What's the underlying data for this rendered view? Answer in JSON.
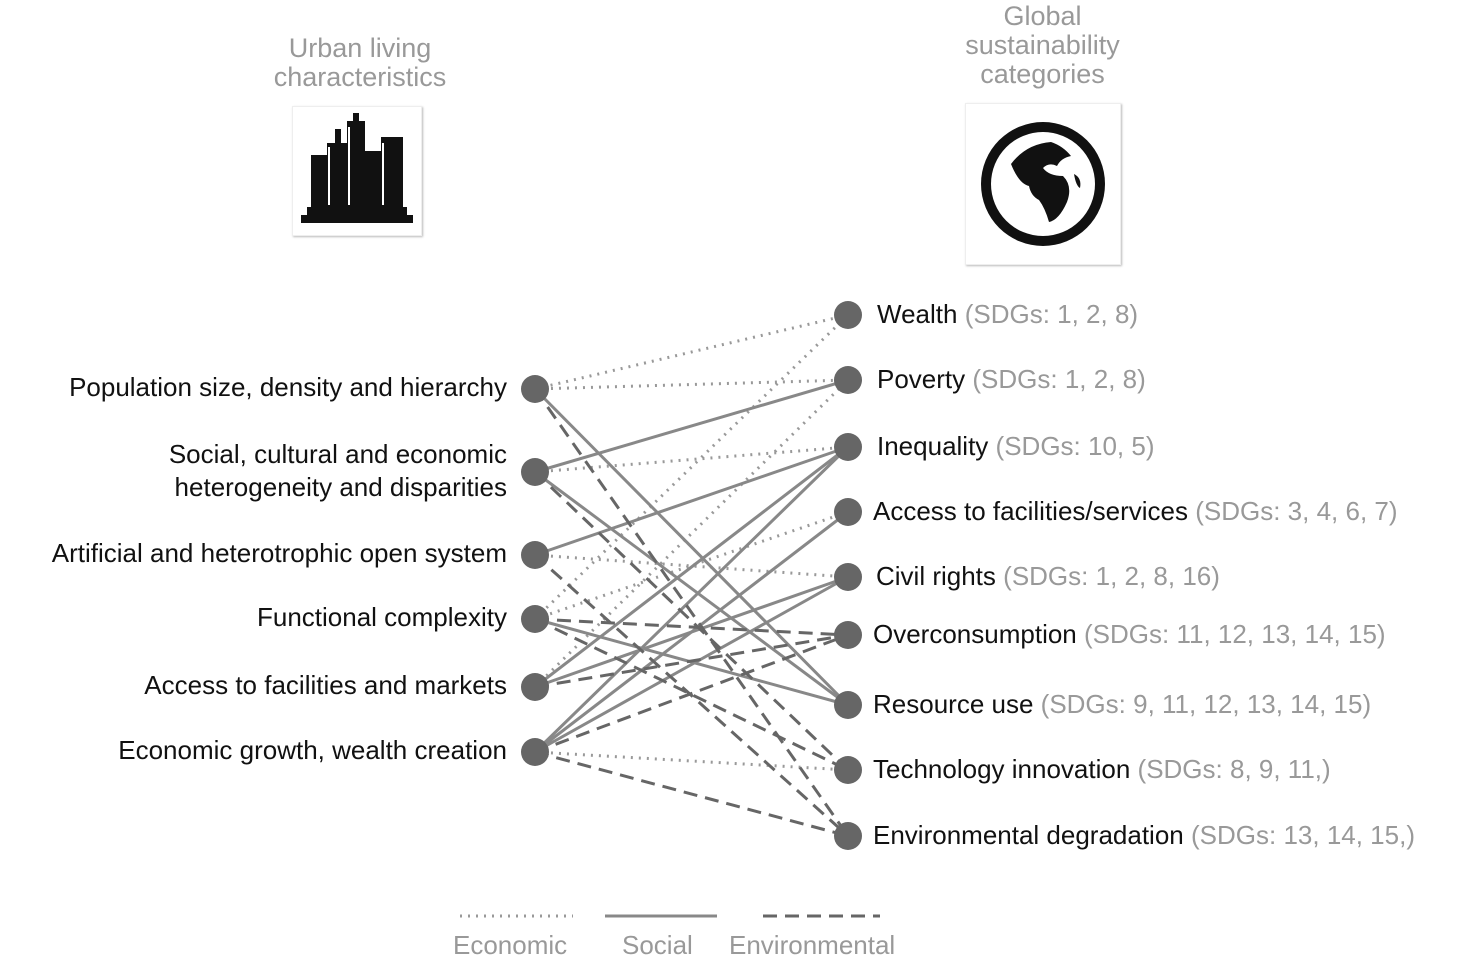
{
  "headers": {
    "left": "Urban living characteristics",
    "left_lines": [
      "Urban living",
      "characteristics"
    ],
    "right_lines": [
      "Global",
      "sustainability",
      "categories"
    ]
  },
  "icons": {
    "left": "city-buildings-icon",
    "right": "globe-icon"
  },
  "left_nodes": [
    {
      "lines": [
        "Population size, density and hierarchy"
      ]
    },
    {
      "lines": [
        "Social, cultural and economic",
        "heterogeneity and disparities"
      ]
    },
    {
      "lines": [
        "Artificial and heterotrophic open system"
      ]
    },
    {
      "lines": [
        "Functional complexity"
      ]
    },
    {
      "lines": [
        "Access to facilities and markets"
      ]
    },
    {
      "lines": [
        "Economic growth, wealth creation"
      ]
    }
  ],
  "right_nodes": [
    {
      "name": "Wealth",
      "sdgs": "(SDGs: 1, 2, 8)"
    },
    {
      "name": "Poverty",
      "sdgs": "(SDGs: 1, 2, 8)"
    },
    {
      "name": "Inequality",
      "sdgs": "(SDGs: 10, 5)"
    },
    {
      "name": "Access to facilities/services",
      "sdgs": "(SDGs: 3, 4, 6, 7)"
    },
    {
      "name": "Civil rights",
      "sdgs": "(SDGs: 1, 2, 8, 16)"
    },
    {
      "name": "Overconsumption",
      "sdgs": "(SDGs: 11, 12, 13, 14, 15)"
    },
    {
      "name": "Resource use",
      "sdgs": "(SDGs: 9, 11, 12, 13, 14, 15)"
    },
    {
      "name": "Technology innovation",
      "sdgs": "(SDGs: 8, 9, 11,)"
    },
    {
      "name": "Environmental degradation",
      "sdgs": "(SDGs: 13, 14, 15,)"
    }
  ],
  "links": [
    {
      "from": 0,
      "to": 0,
      "type": "economic"
    },
    {
      "from": 0,
      "to": 1,
      "type": "economic"
    },
    {
      "from": 1,
      "to": 2,
      "type": "economic"
    },
    {
      "from": 2,
      "to": 4,
      "type": "economic"
    },
    {
      "from": 3,
      "to": 0,
      "type": "economic"
    },
    {
      "from": 4,
      "to": 1,
      "type": "economic"
    },
    {
      "from": 3,
      "to": 3,
      "type": "economic"
    },
    {
      "from": 5,
      "to": 7,
      "type": "economic"
    },
    {
      "from": 0,
      "to": 6,
      "type": "social"
    },
    {
      "from": 1,
      "to": 1,
      "type": "social"
    },
    {
      "from": 1,
      "to": 6,
      "type": "social"
    },
    {
      "from": 2,
      "to": 2,
      "type": "social"
    },
    {
      "from": 3,
      "to": 6,
      "type": "social"
    },
    {
      "from": 4,
      "to": 2,
      "type": "social"
    },
    {
      "from": 4,
      "to": 4,
      "type": "social"
    },
    {
      "from": 5,
      "to": 2,
      "type": "social"
    },
    {
      "from": 5,
      "to": 3,
      "type": "social"
    },
    {
      "from": 5,
      "to": 4,
      "type": "social"
    },
    {
      "from": 0,
      "to": 8,
      "type": "environmental"
    },
    {
      "from": 1,
      "to": 7,
      "type": "environmental"
    },
    {
      "from": 2,
      "to": 8,
      "type": "environmental"
    },
    {
      "from": 3,
      "to": 5,
      "type": "environmental"
    },
    {
      "from": 3,
      "to": 7,
      "type": "environmental"
    },
    {
      "from": 4,
      "to": 5,
      "type": "environmental"
    },
    {
      "from": 5,
      "to": 5,
      "type": "environmental"
    },
    {
      "from": 5,
      "to": 8,
      "type": "environmental"
    }
  ],
  "legend": [
    {
      "key": "economic",
      "label": "Economic",
      "style": "dotted"
    },
    {
      "key": "social",
      "label": "Social",
      "style": "solid"
    },
    {
      "key": "environmental",
      "label": "Environmental",
      "style": "dashed"
    }
  ],
  "colors": {
    "node": "#666666",
    "line": "#888888",
    "dashed_line": "#666666",
    "muted_text": "#999999",
    "text": "#111111"
  }
}
